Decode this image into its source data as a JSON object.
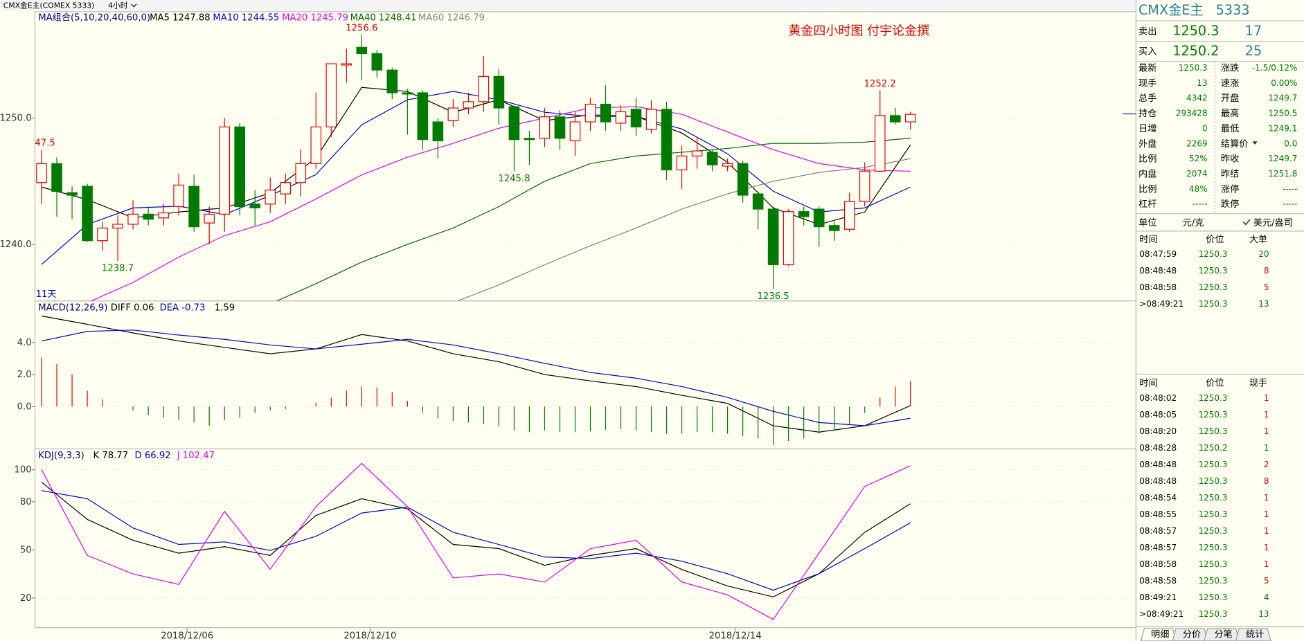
{
  "toolbar": {
    "symbol": "CMX金E主(COMEX 5333)",
    "period": "4小时"
  },
  "main": {
    "legend_title": "MA组合(5,10,20,40,60,0)",
    "annotation": "黄金四小时图  付宇论金撰",
    "days_label": "11天",
    "ylim": [
      1235.53,
      1258.42
    ],
    "yticks": [
      {
        "value": 1250,
        "label": "1250.0"
      },
      {
        "value": 1240,
        "label": "1240.0"
      }
    ],
    "up_color": "#e00000",
    "down_color": "#007a00",
    "open": [
      1244.9,
      1246.4,
      1244.1,
      1244.6,
      1240.3,
      1241.3,
      1241.6,
      1242.4,
      1242.1,
      1243.0,
      1244.6,
      1241.7,
      1242.4,
      1249.3,
      1243.2,
      1243.2,
      1244.0,
      1244.9,
      1246.4,
      1249.3,
      1254.2,
      1255.6,
      1255.1,
      1253.8,
      1252.0,
      1252.0,
      1249.7,
      1249.8,
      1250.8,
      1251.3,
      1253.3,
      1250.9,
      1248.4,
      1248.4,
      1250.1,
      1248.2,
      1249.7,
      1251.1,
      1249.6,
      1250.7,
      1249.1,
      1250.7,
      1245.9,
      1247.0,
      1247.3,
      1246.2,
      1246.4,
      1244.0,
      1242.8,
      1238.4,
      1242.6,
      1242.8,
      1241.5,
      1241.2,
      1243.4,
      1245.8,
      1250.2,
      1249.7
    ],
    "high": [
      1247.5,
      1246.9,
      1244.6,
      1244.8,
      1241.8,
      1242.3,
      1243.5,
      1243.0,
      1243.2,
      1245.6,
      1245.5,
      1243.0,
      1250.0,
      1249.6,
      1244.3,
      1245.3,
      1245.6,
      1247.5,
      1252.0,
      1254.3,
      1255.5,
      1256.6,
      1255.4,
      1254.0,
      1252.3,
      1252.2,
      1250.0,
      1251.5,
      1252.0,
      1254.9,
      1253.9,
      1251.0,
      1249.0,
      1250.8,
      1250.6,
      1250.5,
      1251.6,
      1252.6,
      1251.0,
      1251.6,
      1251.4,
      1251.3,
      1247.8,
      1248.5,
      1247.5,
      1246.8,
      1246.6,
      1244.2,
      1243.0,
      1242.8,
      1243.0,
      1243.0,
      1241.8,
      1244.1,
      1246.5,
      1252.2,
      1250.8,
      1250.5
    ],
    "low": [
      1243.2,
      1242.2,
      1242.0,
      1240.2,
      1239.5,
      1238.7,
      1241.2,
      1241.5,
      1241.5,
      1242.3,
      1241.0,
      1240.0,
      1241.0,
      1242.3,
      1241.5,
      1242.5,
      1243.2,
      1243.8,
      1246.0,
      1248.5,
      1252.8,
      1253.0,
      1253.2,
      1251.5,
      1248.7,
      1247.5,
      1246.8,
      1249.3,
      1250.3,
      1250.5,
      1249.5,
      1245.8,
      1246.3,
      1247.7,
      1247.5,
      1247.0,
      1249.0,
      1249.0,
      1249.0,
      1248.6,
      1248.8,
      1245.1,
      1244.4,
      1246.0,
      1245.8,
      1245.8,
      1243.3,
      1241.2,
      1236.5,
      1238.3,
      1241.5,
      1239.8,
      1240.3,
      1241.0,
      1243.0,
      1245.7,
      1249.5,
      1249.1
    ],
    "close": [
      1246.4,
      1244.2,
      1243.9,
      1240.3,
      1241.3,
      1241.6,
      1242.4,
      1242.0,
      1242.5,
      1244.7,
      1241.4,
      1242.4,
      1249.3,
      1243.0,
      1242.9,
      1244.3,
      1244.9,
      1246.4,
      1249.3,
      1254.3,
      1254.3,
      1255.1,
      1253.8,
      1252.0,
      1251.9,
      1248.3,
      1248.2,
      1250.8,
      1251.3,
      1253.3,
      1250.8,
      1248.3,
      1248.3,
      1250.1,
      1248.4,
      1249.7,
      1251.1,
      1249.7,
      1250.5,
      1249.3,
      1250.7,
      1245.9,
      1247.0,
      1247.4,
      1246.3,
      1246.4,
      1243.9,
      1242.8,
      1238.4,
      1242.6,
      1242.2,
      1241.4,
      1241.1,
      1243.4,
      1245.8,
      1250.2,
      1249.7,
      1250.3
    ],
    "extremes": [
      {
        "label": "47.5"
      },
      {
        "label": "1256.6"
      },
      {
        "label": "1238.7"
      },
      {
        "label": "1245.8"
      },
      {
        "label": "1252.2"
      },
      {
        "label": "1236.5"
      }
    ],
    "lines": [
      {
        "label": "MA5 1247.88",
        "color": "#000000",
        "values": [
          1244.54,
          1243.55,
          1242.11,
          1242.57,
          1242.89,
          1244.08,
          1246.84,
          1252.43,
          1252.11,
          1250.46,
          1251.45,
          1249.8,
          1250.26,
          1250.13,
          1248.82,
          1246.51,
          1242.89,
          1241.58,
          1242.57,
          1247.88
        ]
      },
      {
        "label": "MA10 1244.55",
        "color": "#0000cd",
        "values": [
          1238.42,
          1241.58,
          1242.89,
          1243.03,
          1242.37,
          1243.88,
          1245.53,
          1249.47,
          1251.45,
          1252.11,
          1251.45,
          1250.46,
          1250.13,
          1250.13,
          1249.14,
          1247.17,
          1244.21,
          1242.57,
          1242.89,
          1244.55
        ]
      },
      {
        "label": "MA20 1245.79",
        "color": "#e000e0",
        "values": [
          1234.5,
          1235.4,
          1237.0,
          1239.0,
          1240.7,
          1241.8,
          1243.6,
          1245.5,
          1246.9,
          1248.0,
          1249.2,
          1250.0,
          1250.8,
          1250.9,
          1250.3,
          1248.9,
          1247.5,
          1246.4,
          1245.9,
          1245.79
        ]
      },
      {
        "label": "MA40 1248.41",
        "color": "#006400",
        "values": [
          null,
          null,
          null,
          null,
          null,
          1235.3,
          1236.9,
          1238.6,
          1240.0,
          1241.3,
          1243.0,
          1245.0,
          1246.4,
          1247.0,
          1247.3,
          1247.6,
          1248.0,
          1248.0,
          1248.1,
          1248.41
        ]
      },
      {
        "label": "MA60 1246.79",
        "color": "#808080",
        "values": [
          null,
          null,
          null,
          null,
          null,
          null,
          null,
          null,
          null,
          1235.4,
          1236.8,
          1238.4,
          1239.9,
          1241.3,
          1242.8,
          1244.0,
          1245.0,
          1245.7,
          1246.1,
          1246.79
        ]
      }
    ]
  },
  "macd": {
    "legend_title": "MACD(12,26,9)",
    "value_label": "1.59",
    "ylim": [
      -2.65,
      6.6
    ],
    "yticks": [
      {
        "value": 4,
        "label": "4.0"
      },
      {
        "value": 2,
        "label": "2.0"
      },
      {
        "value": 0,
        "label": "0.0"
      }
    ],
    "pos_color": "#e00000",
    "neg_color": "#007a00",
    "histogram": [
      3.06,
      2.65,
      2.0,
      1.0,
      0.45,
      0,
      -0.25,
      -0.55,
      -0.7,
      -0.85,
      -1.0,
      -1.2,
      -0.85,
      -0.7,
      -0.4,
      -0.25,
      -0.15,
      0,
      0.25,
      0.55,
      1.0,
      1.25,
      1.2,
      0.9,
      0.35,
      -0.4,
      -0.75,
      -0.9,
      -1.0,
      -1.1,
      -1.25,
      -1.5,
      -1.6,
      -1.5,
      -1.6,
      -1.6,
      -1.55,
      -1.45,
      -1.4,
      -1.5,
      -1.6,
      -1.7,
      -1.7,
      -1.6,
      -1.6,
      -1.7,
      -1.85,
      -2.0,
      -2.4,
      -2.15,
      -2.0,
      -1.7,
      -1.5,
      -1.1,
      -0.4,
      0.55,
      1.25,
      1.59
    ],
    "lines": [
      {
        "label": "DIFF 0.06",
        "color": "#000000",
        "values": [
          5.66,
          5.14,
          4.6,
          4.1,
          3.7,
          3.3,
          3.6,
          4.5,
          4.1,
          3.3,
          2.8,
          2.0,
          1.6,
          1.25,
          0.7,
          0.2,
          -1.2,
          -1.6,
          -1.2,
          0.06
        ]
      },
      {
        "label": "DEA -0.73",
        "color": "#0000cd",
        "values": [
          4.1,
          4.7,
          4.78,
          4.47,
          4.2,
          3.85,
          3.6,
          3.9,
          4.2,
          3.85,
          3.3,
          2.7,
          2.13,
          1.77,
          1.25,
          0.57,
          -0.3,
          -1.0,
          -1.2,
          -0.73
        ]
      }
    ]
  },
  "kdj": {
    "legend_title": "KDJ(9,3,3)",
    "ylim": [
      1.55,
      112.95
    ],
    "yticks": [
      100,
      80,
      50,
      20
    ],
    "lines": [
      {
        "label": "K 78.77",
        "color": "#000000",
        "values": [
          92.2,
          69,
          56,
          48,
          52,
          46.6,
          71.5,
          81.9,
          75.6,
          53.4,
          50.8,
          40.4,
          46.6,
          50.8,
          37.8,
          27.5,
          20.7,
          35.2,
          61,
          78.77
        ]
      },
      {
        "label": "D 66.92",
        "color": "#0000cd",
        "values": [
          87,
          81.9,
          63.7,
          53.4,
          55,
          49.7,
          58.5,
          73,
          76.7,
          61,
          53.4,
          45.6,
          44.6,
          48,
          43,
          35.2,
          24.9,
          35.2,
          50.8,
          66.92
        ]
      },
      {
        "label": "J 102.47",
        "color": "#e000e0",
        "values": [
          100,
          46.6,
          35,
          28.5,
          74,
          38,
          77,
          104,
          77,
          32.6,
          35,
          30,
          50.8,
          56,
          30,
          22,
          6.7,
          48,
          89.6,
          102.47
        ]
      }
    ]
  },
  "dates": [
    "2018/12/06",
    "2018/12/10",
    "2018/12/14"
  ],
  "quote": {
    "name": "CMX金E主",
    "code": "5333",
    "sell": {
      "label": "卖出",
      "price": "1250.3",
      "volume": "17"
    },
    "buy": {
      "label": "买入",
      "price": "1250.2",
      "volume": "25"
    },
    "grid": [
      [
        "最新",
        "1250.3",
        "涨跌",
        "-1.5/0.12%"
      ],
      [
        "现手",
        "13",
        "速涨",
        "0.00%"
      ],
      [
        "总手",
        "4342",
        "开盘",
        "1249.7"
      ],
      [
        "持仓",
        "293428",
        "最高",
        "1250.5"
      ],
      [
        "日增",
        "0",
        "最低",
        "1249.1"
      ],
      [
        "外盘",
        "2269",
        "结算价",
        "0.0"
      ],
      [
        "比例",
        "52%",
        "昨收",
        "1249.7"
      ],
      [
        "内盘",
        "2074",
        "昨结",
        "1251.8"
      ],
      [
        "比例",
        "48%",
        "涨停",
        "-----"
      ],
      [
        "杠杆",
        "-----",
        "跌停",
        "-----"
      ]
    ],
    "unit": {
      "label": "单位",
      "cny": "元/克",
      "usd": "美元/盎司"
    }
  },
  "big_orders": {
    "header": [
      "时间",
      "价位",
      "大单"
    ],
    "rows": [
      {
        "time": "08:47:59",
        "price": "1250.3",
        "volume": "20",
        "color": "#007a00"
      },
      {
        "time": "08:48:48",
        "price": "1250.3",
        "volume": "8",
        "color": "#e00000"
      },
      {
        "time": "08:48:58",
        "price": "1250.3",
        "volume": "5",
        "color": "#e00000"
      },
      {
        "time": ">08:49:21",
        "price": "1250.3",
        "volume": "13",
        "color": "#007a00"
      }
    ]
  },
  "ticks": {
    "header": [
      "时间",
      "价位",
      "现手"
    ],
    "rows": [
      {
        "time": "08:48:02",
        "price": "1250.3",
        "volume": "1",
        "color": "#e00000"
      },
      {
        "time": "08:48:05",
        "price": "1250.3",
        "volume": "1",
        "color": "#e00000"
      },
      {
        "time": "08:48:20",
        "price": "1250.3",
        "volume": "1",
        "color": "#e00000"
      },
      {
        "time": "08:48:28",
        "price": "1250.2",
        "volume": "1",
        "color": "#007a00"
      },
      {
        "time": "08:48:48",
        "price": "1250.3",
        "volume": "2",
        "color": "#e00000"
      },
      {
        "time": "08:48:48",
        "price": "1250.3",
        "volume": "8",
        "color": "#e00000"
      },
      {
        "time": "08:48:54",
        "price": "1250.3",
        "volume": "1",
        "color": "#e00000"
      },
      {
        "time": "08:48:55",
        "price": "1250.3",
        "volume": "1",
        "color": "#e00000"
      },
      {
        "time": "08:48:57",
        "price": "1250.3",
        "volume": "1",
        "color": "#e00000"
      },
      {
        "time": "08:48:57",
        "price": "1250.3",
        "volume": "1",
        "color": "#e00000"
      },
      {
        "time": "08:48:58",
        "price": "1250.3",
        "volume": "1",
        "color": "#e00000"
      },
      {
        "time": "08:48:58",
        "price": "1250.3",
        "volume": "5",
        "color": "#e00000"
      },
      {
        "time": "08:49:21",
        "price": "1250.3",
        "volume": "4",
        "color": "#007a00"
      },
      {
        "time": ">08:49:21",
        "price": "1250.3",
        "volume": "13",
        "color": "#007a00"
      }
    ]
  },
  "tabs": [
    "明细",
    "分价",
    "分笔",
    "统计"
  ]
}
